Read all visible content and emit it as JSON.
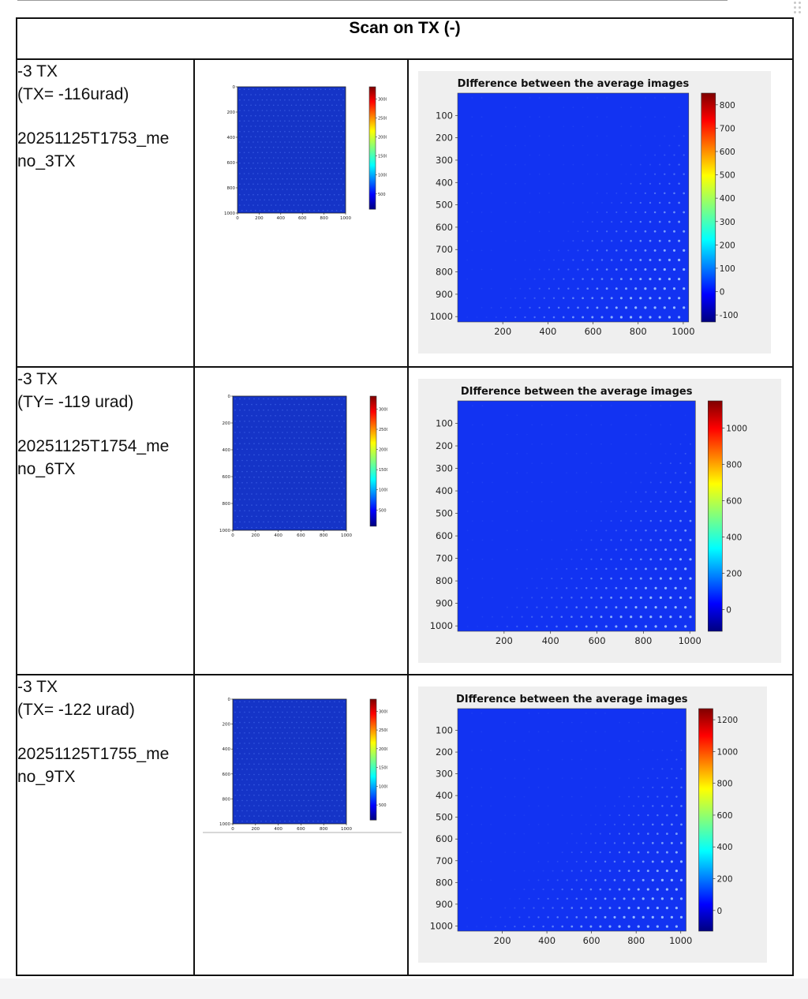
{
  "table": {
    "heading": "Scan on TX (-)"
  },
  "rows": [
    {
      "label_line1": "-3 TX",
      "label_line2": "(TX=  -116urad)",
      "file_a": "20251125T1753_me",
      "file_b": "no_3TX",
      "thumb": {
        "yticks": [
          "0",
          "200",
          "400",
          "600",
          "800",
          "1000"
        ],
        "xticks": [
          "0",
          "200",
          "400",
          "600",
          "800",
          "1000"
        ],
        "cbticks": [
          "3000",
          "2500",
          "2000",
          "1500",
          "1000",
          "500"
        ]
      },
      "diff": {
        "title": "DIfference between the average images",
        "yticks": [
          "100",
          "200",
          "300",
          "400",
          "500",
          "600",
          "700",
          "800",
          "900",
          "1000"
        ],
        "xticks": [
          "200",
          "400",
          "600",
          "800",
          "1000"
        ],
        "cbticks": [
          "800",
          "700",
          "600",
          "500",
          "400",
          "300",
          "200",
          "100",
          "0",
          "-100"
        ]
      }
    },
    {
      "label_line1": "-3 TX",
      "label_line2": "(TY= -119 urad)",
      "file_a": "20251125T1754_me",
      "file_b": "no_6TX",
      "thumb": {
        "yticks": [
          "0",
          "200",
          "400",
          "600",
          "800",
          "1000"
        ],
        "xticks": [
          "0",
          "200",
          "400",
          "600",
          "800",
          "1000"
        ],
        "cbticks": [
          "3000",
          "2500",
          "2000",
          "1500",
          "1000",
          "500"
        ]
      },
      "diff": {
        "title": "DIfference between the average images",
        "yticks": [
          "100",
          "200",
          "300",
          "400",
          "500",
          "600",
          "700",
          "800",
          "900",
          "1000"
        ],
        "xticks": [
          "200",
          "400",
          "600",
          "800",
          "1000"
        ],
        "cbticks": [
          "1000",
          "800",
          "600",
          "400",
          "200",
          "0"
        ]
      }
    },
    {
      "label_line1": "-3 TX",
      "label_line2": "(TX= -122 urad)",
      "file_a": "20251125T1755_me",
      "file_b": "no_9TX",
      "thumb": {
        "yticks": [
          "0",
          "200",
          "400",
          "600",
          "800",
          "1000"
        ],
        "xticks": [
          "0",
          "200",
          "400",
          "600",
          "800",
          "1000"
        ],
        "cbticks": [
          "3000",
          "2500",
          "2000",
          "1500",
          "1000",
          "500"
        ]
      },
      "diff": {
        "title": "DIfference between the average images",
        "yticks": [
          "100",
          "200",
          "300",
          "400",
          "500",
          "600",
          "700",
          "800",
          "900",
          "1000"
        ],
        "xticks": [
          "200",
          "400",
          "600",
          "800",
          "1000"
        ],
        "cbticks": [
          "1200",
          "1000",
          "800",
          "600",
          "400",
          "200",
          "0"
        ]
      }
    }
  ]
}
